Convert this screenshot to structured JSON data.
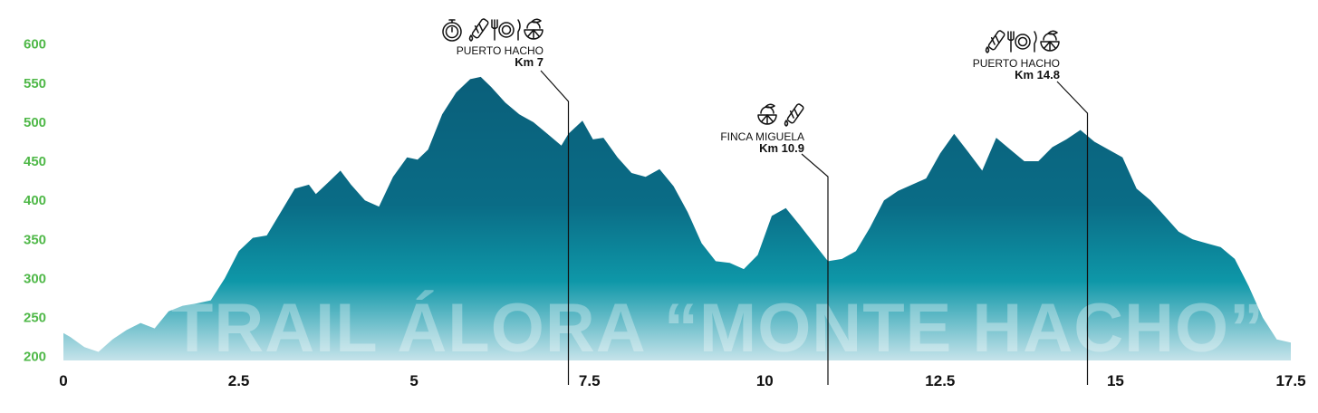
{
  "chart_data": {
    "type": "area",
    "title": "",
    "watermark": "TRAIL ÁLORA “MONTE HACHO”",
    "xlabel": "",
    "ylabel": "",
    "xlim": [
      0,
      17.5
    ],
    "ylim": [
      195,
      610
    ],
    "x_ticks": [
      "0",
      "2.5",
      "5",
      "7.5",
      "10",
      "12.5",
      "15",
      "17.5"
    ],
    "y_ticks": [
      "200",
      "250",
      "300",
      "350",
      "400",
      "450",
      "500",
      "550",
      "600"
    ],
    "grid": false,
    "colors": {
      "area_top": "#0a5f7a",
      "area_mid": "#0e97a8",
      "area_bottom": "#c5e3ea",
      "y_tick": "#4fb848",
      "x_tick": "#111111"
    },
    "series": [
      {
        "x": [
          0,
          0.1,
          0.3,
          0.5,
          0.7,
          0.9,
          1.1,
          1.3,
          1.5,
          1.7,
          1.9,
          2.1,
          2.3,
          2.5,
          2.7,
          2.9,
          3.1,
          3.3,
          3.5,
          3.6,
          3.8,
          3.95,
          4.1,
          4.3,
          4.5,
          4.7,
          4.9,
          5.05,
          5.2,
          5.4,
          5.6,
          5.8,
          5.95,
          6.1,
          6.3,
          6.5,
          6.7,
          6.9,
          7.1,
          7.2,
          7.4,
          7.55,
          7.7,
          7.9,
          8.1,
          8.3,
          8.5,
          8.7,
          8.9,
          9.1,
          9.3,
          9.5,
          9.7,
          9.9,
          10.1,
          10.3,
          10.5,
          10.7,
          10.9,
          11.1,
          11.3,
          11.5,
          11.7,
          11.9,
          12.1,
          12.3,
          12.5,
          12.7,
          12.9,
          13.1,
          13.3,
          13.5,
          13.7,
          13.9,
          14.1,
          14.3,
          14.5,
          14.7,
          14.9,
          15.1,
          15.3,
          15.5,
          15.7,
          15.9,
          16.1,
          16.3,
          16.5,
          16.7,
          16.9,
          17.1,
          17.3,
          17.5
        ],
        "values": [
          230,
          225,
          212,
          206,
          222,
          234,
          243,
          236,
          258,
          265,
          268,
          272,
          300,
          335,
          352,
          355,
          385,
          415,
          420,
          408,
          425,
          438,
          420,
          400,
          392,
          430,
          455,
          452,
          465,
          510,
          538,
          555,
          558,
          545,
          525,
          510,
          500,
          485,
          470,
          485,
          502,
          478,
          480,
          455,
          435,
          430,
          440,
          418,
          385,
          345,
          322,
          320,
          312,
          330,
          380,
          390,
          368,
          345,
          322,
          325,
          335,
          365,
          400,
          412,
          420,
          428,
          460,
          485,
          462,
          438,
          480,
          465,
          450,
          450,
          468,
          478,
          490,
          475,
          465,
          455,
          415,
          400,
          380,
          360,
          350,
          345,
          340,
          325,
          290,
          250,
          222,
          218
        ]
      }
    ],
    "checkpoints": [
      {
        "name": "PUERTO HACHO",
        "km_label": "Km 7",
        "km": 7.2,
        "icons": [
          "stopwatch-icon",
          "water-bottle-icon",
          "cutlery-icon",
          "fruit-icon"
        ]
      },
      {
        "name": "FINCA MIGUELA",
        "km_label": "Km 10.9",
        "km": 10.9,
        "icons": [
          "fruit-icon",
          "water-bottle-icon"
        ]
      },
      {
        "name": "PUERTO HACHO",
        "km_label": "Km 14.8",
        "km": 14.6,
        "icons": [
          "water-bottle-icon",
          "cutlery-icon",
          "fruit-icon"
        ]
      }
    ]
  }
}
